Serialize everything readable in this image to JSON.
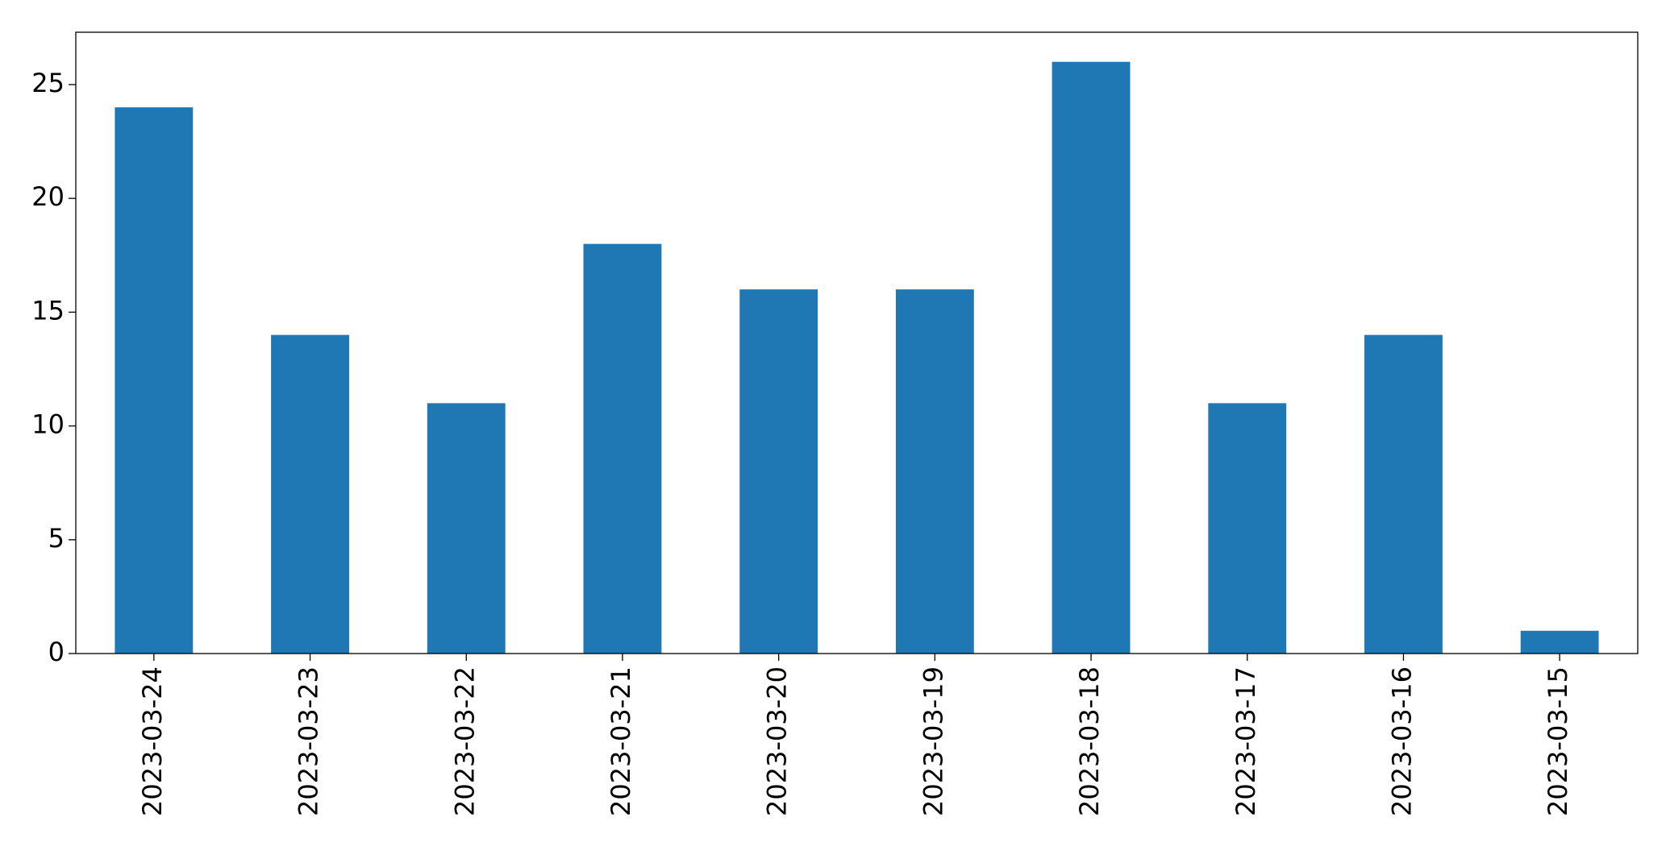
{
  "chart_data": {
    "type": "bar",
    "categories": [
      "2023-03-24",
      "2023-03-23",
      "2023-03-22",
      "2023-03-21",
      "2023-03-20",
      "2023-03-19",
      "2023-03-18",
      "2023-03-17",
      "2023-03-16",
      "2023-03-15"
    ],
    "values": [
      24,
      14,
      11,
      18,
      16,
      16,
      26,
      11,
      14,
      1
    ],
    "color": "#1f77b4",
    "ylim": [
      0,
      27.3
    ],
    "yticks": [
      0,
      5,
      10,
      15,
      20,
      25
    ],
    "grid": false
  }
}
